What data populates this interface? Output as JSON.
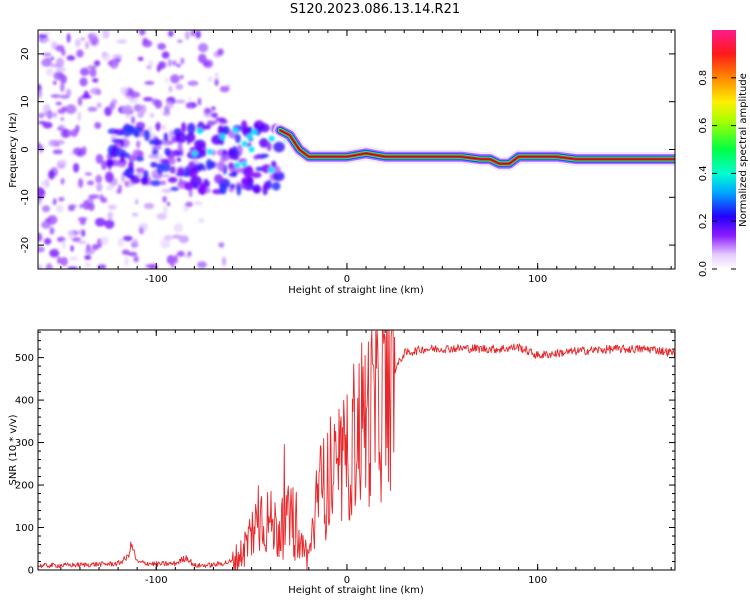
{
  "title": "S120.2023.086.13.14.R21",
  "chart_data": [
    {
      "type": "heatmap",
      "xlabel": "Height of straight line (km)",
      "ylabel": "Frequency (Hz)",
      "xlim": [
        -162,
        172
      ],
      "ylim": [
        -25,
        25
      ],
      "x_ticks": [
        -100,
        0,
        100
      ],
      "y_ticks": [
        -20,
        -10,
        0,
        10,
        20
      ],
      "colorbar": {
        "label": "Normalized spectral amplitude",
        "range": [
          0,
          1
        ],
        "ticks": [
          "0.0",
          "0.2",
          "0.4",
          "0.6",
          "0.8"
        ],
        "colormap": "gist_rainbow_r (white at low end)"
      },
      "ridge": {
        "x": [
          -35,
          -30,
          -25,
          -20,
          -10,
          0,
          10,
          20,
          40,
          60,
          70,
          75,
          80,
          85,
          90,
          100,
          110,
          120,
          140,
          172
        ],
        "f_hz": [
          4,
          3,
          0,
          -1.5,
          -1.5,
          -1.5,
          -0.8,
          -1.5,
          -1.5,
          -1.5,
          -2,
          -2,
          -3,
          -3,
          -1.5,
          -1.5,
          -1.5,
          -2,
          -2,
          -2
        ]
      }
    },
    {
      "type": "line",
      "xlabel": "Height of straight line (km)",
      "ylabel": "SNR (10 * v/v)",
      "xlim": [
        -162,
        172
      ],
      "ylim": [
        0,
        565
      ],
      "x_ticks": [
        -100,
        0,
        100
      ],
      "y_ticks": [
        0,
        100,
        200,
        300,
        400,
        500
      ],
      "color": "#e8272a",
      "series": [
        {
          "x": [
            -162,
            -140,
            -120,
            -115,
            -113,
            -110,
            -100,
            -90,
            -84,
            -80,
            -70,
            -60,
            -55,
            -50,
            -45,
            -40,
            -35,
            -30,
            -25,
            -20,
            -15,
            -10,
            -5,
            0,
            5,
            10,
            15,
            20,
            25,
            30,
            40,
            60,
            80,
            90,
            100,
            120,
            140,
            160,
            172
          ],
          "y": [
            10,
            12,
            15,
            30,
            60,
            18,
            14,
            15,
            30,
            10,
            12,
            20,
            40,
            90,
            130,
            110,
            90,
            120,
            60,
            30,
            180,
            200,
            220,
            260,
            330,
            360,
            380,
            400,
            470,
            510,
            520,
            522,
            520,
            525,
            505,
            515,
            520,
            520,
            510
          ]
        }
      ]
    }
  ]
}
